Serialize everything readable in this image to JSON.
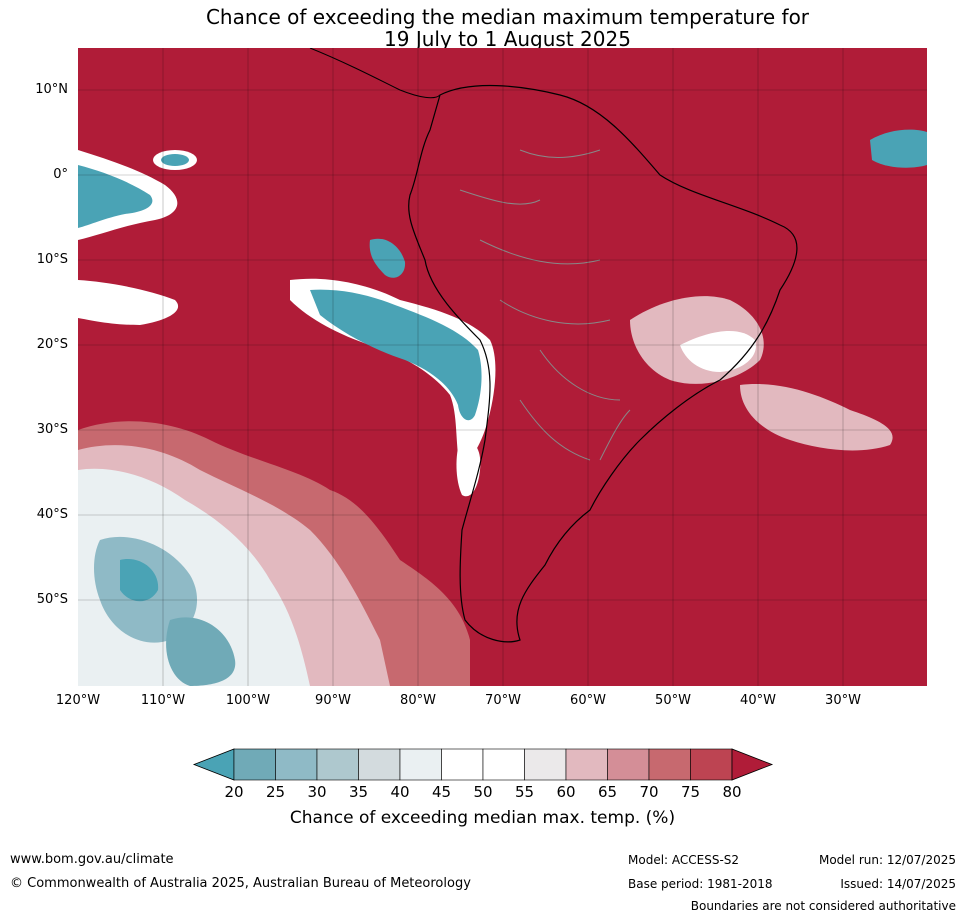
{
  "title": {
    "line1": "Chance of exceeding the median maximum temperature for",
    "line2": "19 July to 1 August 2025"
  },
  "map": {
    "lat_labels": [
      "10°N",
      "0°",
      "10°S",
      "20°S",
      "30°S",
      "40°S",
      "50°S"
    ],
    "lon_labels": [
      "120°W",
      "110°W",
      "100°W",
      "90°W",
      "80°W",
      "70°W",
      "60°W",
      "50°W",
      "40°W",
      "30°W"
    ],
    "colors": {
      "above": "#b01c38",
      "below": "#4aa3b5",
      "neutral": "#ffffff",
      "ocean_background": "#b01c38"
    }
  },
  "colorbar": {
    "ticks": [
      "20",
      "25",
      "30",
      "35",
      "40",
      "45",
      "50",
      "55",
      "60",
      "65",
      "70",
      "75",
      "80"
    ],
    "colors": [
      "#4aa3b5",
      "#70aab7",
      "#8fbac6",
      "#aec8ce",
      "#d3dbde",
      "#eaf0f2",
      "#ffffff",
      "#ffffff",
      "#ebe9ea",
      "#e2b9bf",
      "#d48e97",
      "#c7696f",
      "#bd4452",
      "#b01c38"
    ],
    "label": "Chance of exceeding median max. temp. (%)"
  },
  "footer": {
    "website": "www.bom.gov.au/climate",
    "copyright": "© Commonwealth of Australia 2025, Australian Bureau of Meteorology",
    "model": "Model: ACCESS-S2",
    "base_period": "Base period: 1981-2018",
    "model_run": "Model run: 12/07/2025",
    "issued": "Issued: 14/07/2025",
    "disclaimer": "Boundaries are not considered authoritative"
  }
}
